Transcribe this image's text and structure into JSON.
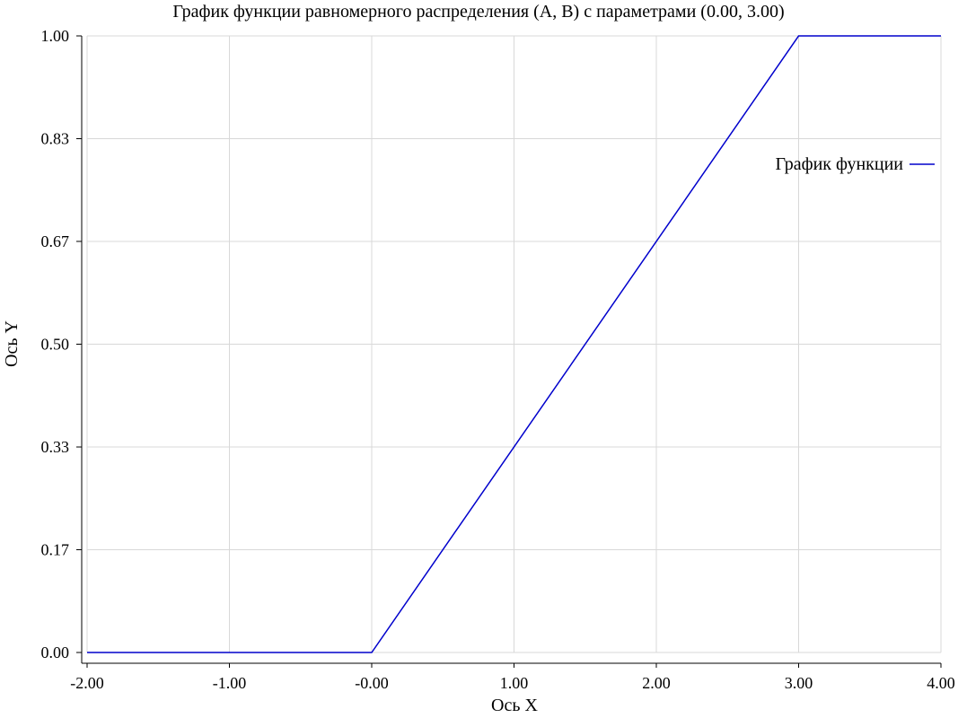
{
  "chart_data": {
    "type": "line",
    "title": "График функции равномерного распределения (A, B) с параметрами (0.00, 3.00)",
    "xlabel": "Ось X",
    "ylabel": "Ось Y",
    "xlim": [
      -2,
      4
    ],
    "ylim": [
      0,
      1
    ],
    "x_ticks": [
      -2,
      -1,
      0,
      1,
      2,
      3,
      4
    ],
    "x_tick_labels": [
      "-2.00",
      "-1.00",
      "-0.00",
      "1.00",
      "2.00",
      "3.00",
      "4.00"
    ],
    "y_ticks": [
      0,
      0.1667,
      0.3333,
      0.5,
      0.6667,
      0.8333,
      1
    ],
    "y_tick_labels": [
      "0.00",
      "0.17",
      "0.33",
      "0.50",
      "0.67",
      "0.83",
      "1.00"
    ],
    "grid": true,
    "legend_position": "top-right",
    "series": [
      {
        "name": "График функции",
        "color": "#0000cc",
        "x": [
          -2,
          0,
          3,
          4
        ],
        "y": [
          0,
          0,
          1,
          1
        ]
      }
    ]
  }
}
